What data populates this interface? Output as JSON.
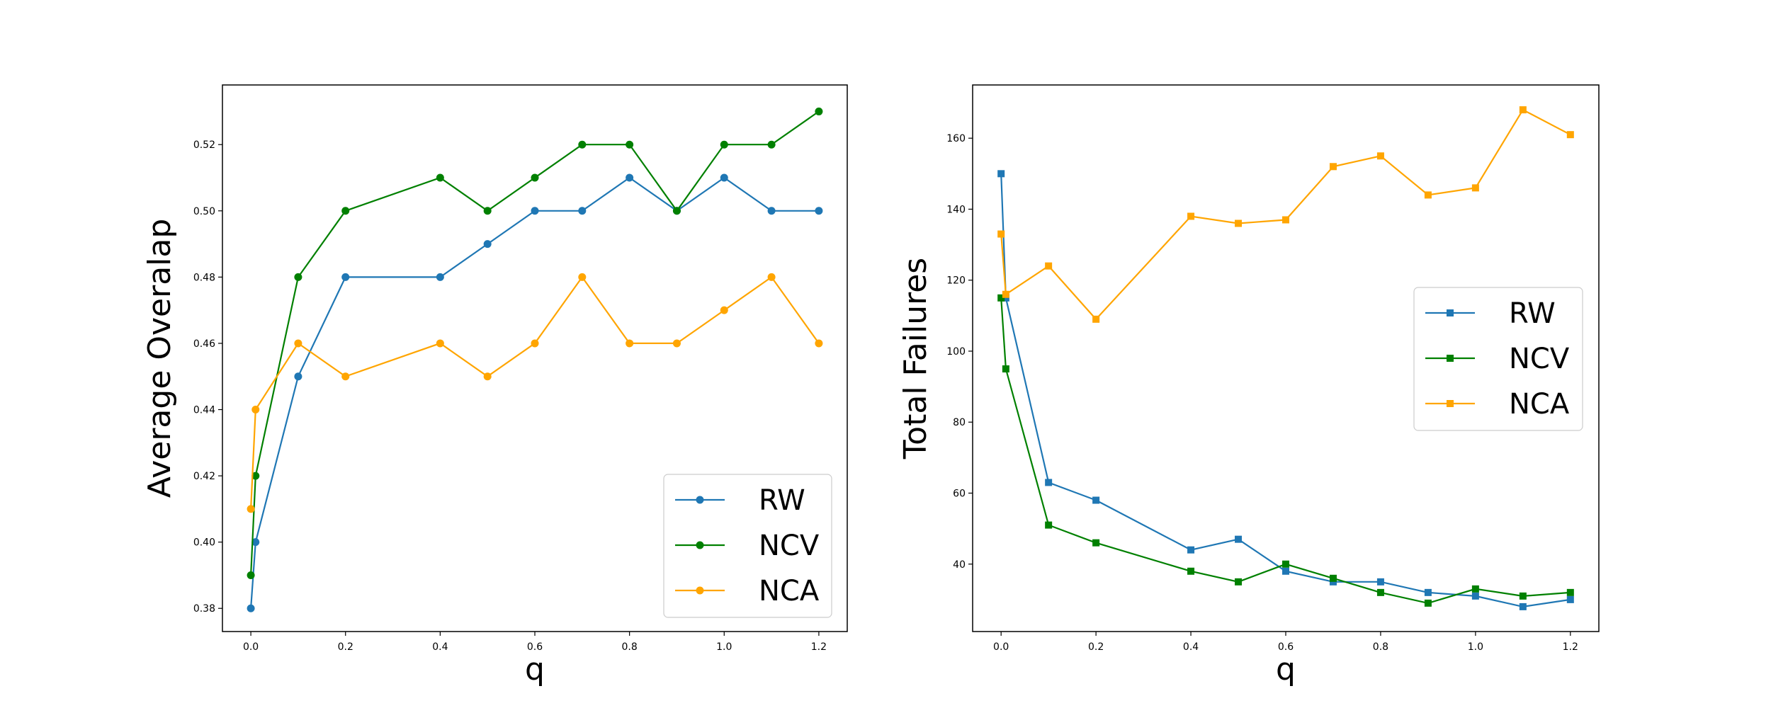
{
  "chart_data": [
    {
      "type": "line",
      "title": "",
      "xlabel": "q",
      "ylabel": "Average Overalap",
      "xlim": [
        -0.06,
        1.26
      ],
      "ylim": [
        0.373,
        0.538
      ],
      "xticks": [
        0.0,
        0.2,
        0.4,
        0.6,
        0.8,
        1.0,
        1.2
      ],
      "xtick_labels": [
        "0.0",
        "0.2",
        "0.4",
        "0.6",
        "0.8",
        "1.0",
        "1.2"
      ],
      "yticks": [
        0.38,
        0.4,
        0.42,
        0.44,
        0.46,
        0.48,
        0.5,
        0.52
      ],
      "ytick_labels": [
        "0.38",
        "0.40",
        "0.42",
        "0.44",
        "0.46",
        "0.48",
        "0.50",
        "0.52"
      ],
      "marker": "circle",
      "legend_position": "lower-right",
      "grid": false,
      "x": [
        0.0,
        0.01,
        0.1,
        0.2,
        0.4,
        0.5,
        0.6,
        0.7,
        0.8,
        0.9,
        1.0,
        1.1,
        1.2
      ],
      "series": [
        {
          "name": "RW",
          "color": "#1f77b4",
          "values": [
            0.38,
            0.4,
            0.45,
            0.48,
            0.48,
            0.49,
            0.5,
            0.5,
            0.51,
            0.5,
            0.51,
            0.5,
            0.5
          ]
        },
        {
          "name": "NCV",
          "color": "#008000",
          "values": [
            0.39,
            0.42,
            0.48,
            0.5,
            0.51,
            0.5,
            0.51,
            0.52,
            0.52,
            0.5,
            0.52,
            0.52,
            0.53
          ]
        },
        {
          "name": "NCA",
          "color": "#ffa500",
          "values": [
            0.41,
            0.44,
            0.46,
            0.45,
            0.46,
            0.45,
            0.46,
            0.48,
            0.46,
            0.46,
            0.47,
            0.48,
            0.46
          ]
        }
      ]
    },
    {
      "type": "line",
      "title": "",
      "xlabel": "q",
      "ylabel": "Total Failures",
      "xlim": [
        -0.06,
        1.26
      ],
      "ylim": [
        21,
        175
      ],
      "xticks": [
        0.0,
        0.2,
        0.4,
        0.6,
        0.8,
        1.0,
        1.2
      ],
      "xtick_labels": [
        "0.0",
        "0.2",
        "0.4",
        "0.6",
        "0.8",
        "1.0",
        "1.2"
      ],
      "yticks": [
        40,
        60,
        80,
        100,
        120,
        140,
        160
      ],
      "ytick_labels": [
        "40",
        "60",
        "80",
        "100",
        "120",
        "140",
        "160"
      ],
      "marker": "square",
      "legend_position": "center-right",
      "grid": false,
      "x": [
        0.0,
        0.01,
        0.1,
        0.2,
        0.4,
        0.5,
        0.6,
        0.7,
        0.8,
        0.9,
        1.0,
        1.1,
        1.2
      ],
      "series": [
        {
          "name": "RW",
          "color": "#1f77b4",
          "values": [
            150,
            115,
            63,
            58,
            44,
            47,
            38,
            35,
            35,
            32,
            31,
            28,
            30
          ]
        },
        {
          "name": "NCV",
          "color": "#008000",
          "values": [
            115,
            95,
            51,
            46,
            38,
            35,
            40,
            36,
            32,
            29,
            33,
            31,
            32
          ]
        },
        {
          "name": "NCA",
          "color": "#ffa500",
          "values": [
            133,
            116,
            124,
            109,
            138,
            136,
            137,
            152,
            155,
            144,
            146,
            168,
            161
          ]
        }
      ]
    }
  ]
}
